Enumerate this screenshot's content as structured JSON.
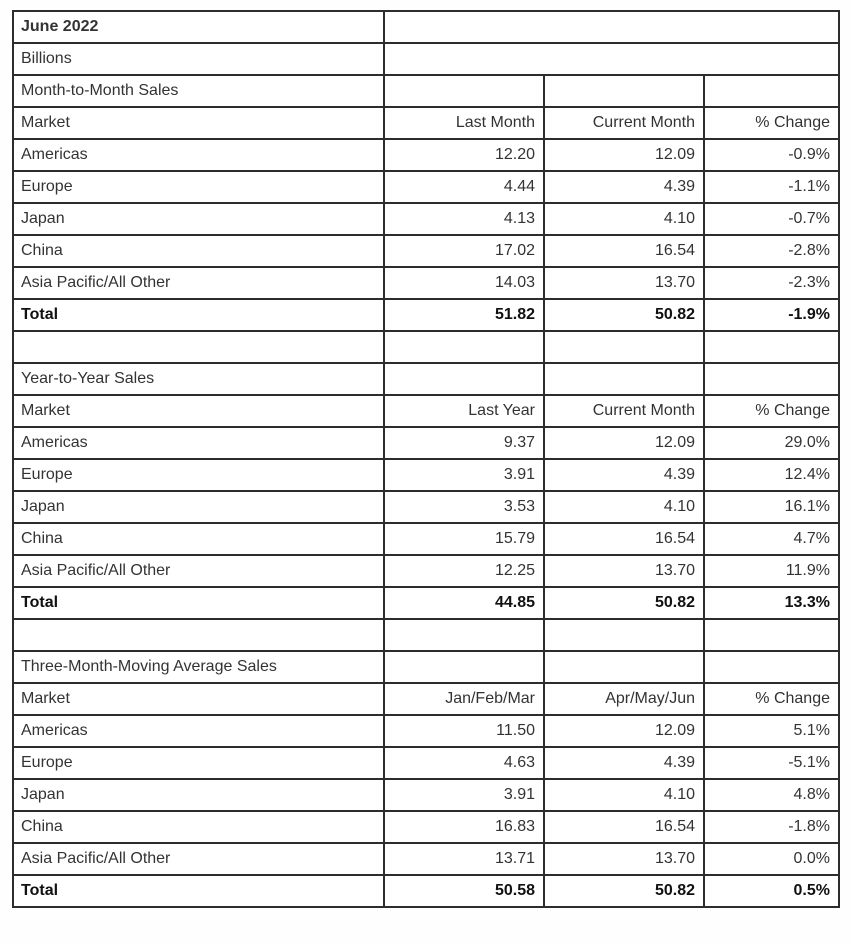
{
  "doc": {
    "period": "June 2022",
    "unit": "Billions"
  },
  "colors": {
    "border": "#2d2d2d",
    "text": "#333333",
    "text_bold": "#111111",
    "background": "#ffffff"
  },
  "sections": [
    {
      "title": "Month-to-Month Sales",
      "headers": {
        "market": "Market",
        "a": "Last Month",
        "b": "Current Month",
        "c": "% Change"
      },
      "rows": [
        {
          "market": "Americas",
          "a": "12.20",
          "b": "12.09",
          "c": "-0.9%"
        },
        {
          "market": "Europe",
          "a": "4.44",
          "b": "4.39",
          "c": "-1.1%"
        },
        {
          "market": "Japan",
          "a": "4.13",
          "b": "4.10",
          "c": "-0.7%"
        },
        {
          "market": "China",
          "a": "17.02",
          "b": "16.54",
          "c": "-2.8%"
        },
        {
          "market": "Asia Pacific/All Other",
          "a": "14.03",
          "b": "13.70",
          "c": "-2.3%"
        }
      ],
      "total": {
        "market": "Total",
        "a": "51.82",
        "b": "50.82",
        "c": "-1.9%"
      }
    },
    {
      "title": "Year-to-Year Sales",
      "headers": {
        "market": "Market",
        "a": "Last Year",
        "b": "Current Month",
        "c": "% Change"
      },
      "rows": [
        {
          "market": "Americas",
          "a": "9.37",
          "b": "12.09",
          "c": "29.0%"
        },
        {
          "market": "Europe",
          "a": "3.91",
          "b": "4.39",
          "c": "12.4%"
        },
        {
          "market": "Japan",
          "a": "3.53",
          "b": "4.10",
          "c": "16.1%"
        },
        {
          "market": "China",
          "a": "15.79",
          "b": "16.54",
          "c": "4.7%"
        },
        {
          "market": "Asia Pacific/All Other",
          "a": "12.25",
          "b": "13.70",
          "c": "11.9%"
        }
      ],
      "total": {
        "market": "Total",
        "a": "44.85",
        "b": "50.82",
        "c": "13.3%"
      }
    },
    {
      "title": "Three-Month-Moving Average Sales",
      "headers": {
        "market": "Market",
        "a": "Jan/Feb/Mar",
        "b": "Apr/May/Jun",
        "c": "% Change"
      },
      "rows": [
        {
          "market": "Americas",
          "a": "11.50",
          "b": "12.09",
          "c": "5.1%"
        },
        {
          "market": "Europe",
          "a": "4.63",
          "b": "4.39",
          "c": "-5.1%"
        },
        {
          "market": "Japan",
          "a": "3.91",
          "b": "4.10",
          "c": "4.8%"
        },
        {
          "market": "China",
          "a": "16.83",
          "b": "16.54",
          "c": "-1.8%"
        },
        {
          "market": "Asia Pacific/All Other",
          "a": "13.71",
          "b": "13.70",
          "c": "0.0%"
        }
      ],
      "total": {
        "market": "Total",
        "a": "50.58",
        "b": "50.82",
        "c": "0.5%"
      }
    }
  ]
}
